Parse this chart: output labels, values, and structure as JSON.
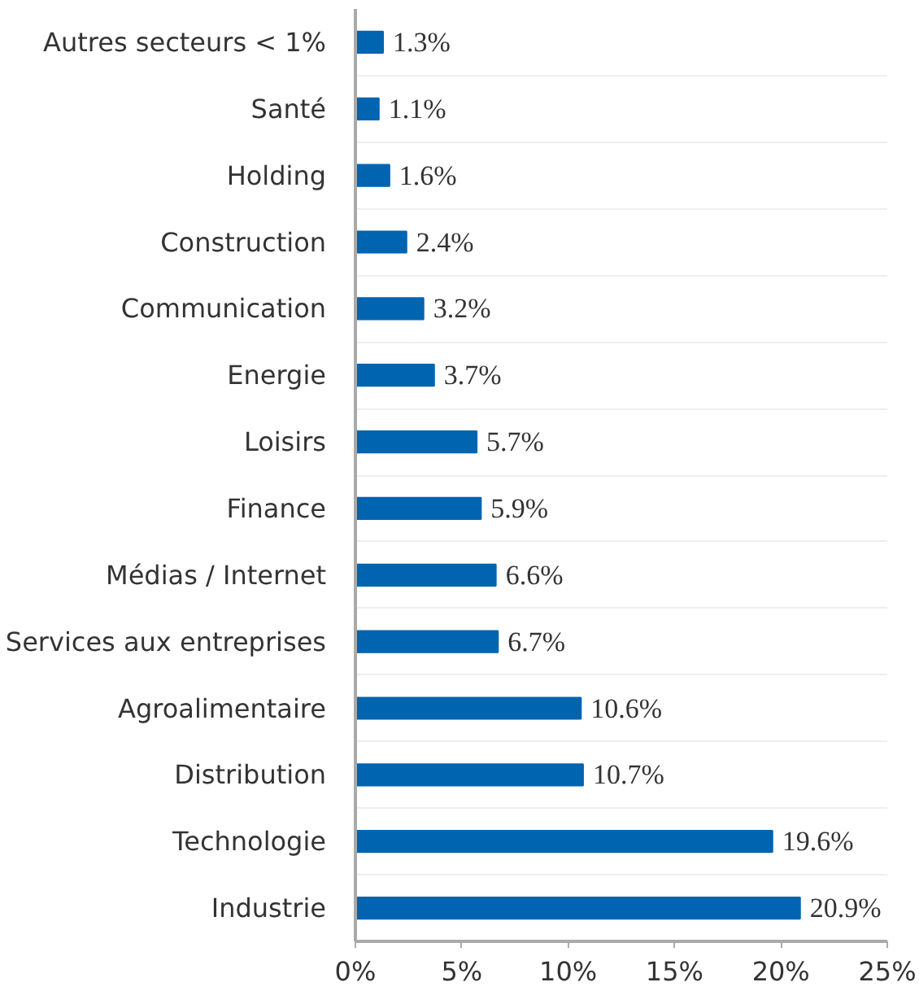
{
  "chart_data": {
    "type": "bar",
    "orientation": "horizontal",
    "categories": [
      "Autres secteurs < 1%",
      "Santé",
      "Holding",
      "Construction",
      "Communication",
      "Energie",
      "Loisirs",
      "Finance",
      "Médias / Internet",
      "Services aux entreprises",
      "Agroalimentaire",
      "Distribution",
      "Technologie",
      "Industrie"
    ],
    "values": [
      1.3,
      1.1,
      1.6,
      2.4,
      3.2,
      3.7,
      5.7,
      5.9,
      6.6,
      6.7,
      10.6,
      10.7,
      19.6,
      20.9
    ],
    "value_labels": [
      "1.3%",
      "1.1%",
      "1.6%",
      "2.4%",
      "3.2%",
      "3.7%",
      "5.7%",
      "5.9%",
      "6.6%",
      "6.7%",
      "10.6%",
      "10.7%",
      "19.6%",
      "20.9%"
    ],
    "color": "#0064b1",
    "xlim": [
      0,
      25
    ],
    "xticks": [
      {
        "value": 0,
        "label": "0%"
      },
      {
        "value": 5,
        "label": "5%"
      },
      {
        "value": 10,
        "label": "10%"
      },
      {
        "value": 15,
        "label": "15%"
      },
      {
        "value": 20,
        "label": "20%"
      },
      {
        "value": 25,
        "label": "25%"
      }
    ],
    "grid": "y"
  }
}
